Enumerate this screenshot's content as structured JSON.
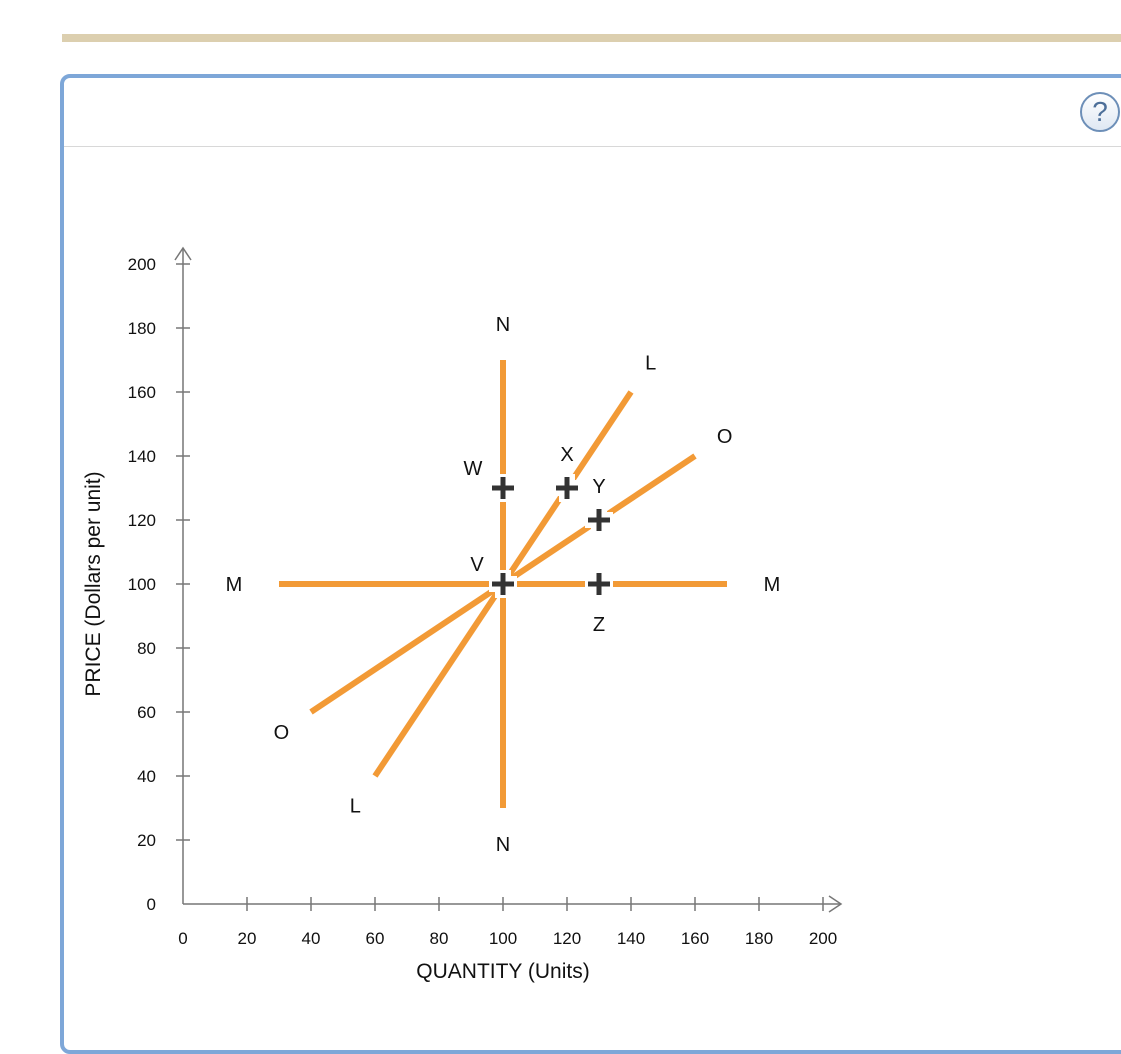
{
  "help": {
    "label": "?"
  },
  "chart_data": {
    "type": "line",
    "xlabel": "QUANTITY (Units)",
    "ylabel": "PRICE (Dollars per unit)",
    "xlim": [
      0,
      200
    ],
    "ylim": [
      0,
      200
    ],
    "xticks": [
      0,
      20,
      40,
      60,
      80,
      100,
      120,
      140,
      160,
      180,
      200
    ],
    "yticks": [
      0,
      20,
      40,
      60,
      80,
      100,
      120,
      140,
      160,
      180,
      200
    ],
    "grid": false,
    "series": [
      {
        "name": "M",
        "points": [
          [
            30,
            100
          ],
          [
            170,
            100
          ]
        ]
      },
      {
        "name": "N",
        "points": [
          [
            100,
            30
          ],
          [
            100,
            170
          ]
        ]
      },
      {
        "name": "L",
        "points": [
          [
            60,
            40
          ],
          [
            140,
            160
          ]
        ]
      },
      {
        "name": "O",
        "points": [
          [
            40,
            60
          ],
          [
            160,
            140
          ]
        ]
      }
    ],
    "points": [
      {
        "label": "V",
        "x": 100,
        "y": 100
      },
      {
        "label": "W",
        "x": 100,
        "y": 130
      },
      {
        "label": "X",
        "x": 120,
        "y": 130
      },
      {
        "label": "Y",
        "x": 130,
        "y": 120
      },
      {
        "label": "Z",
        "x": 130,
        "y": 100
      }
    ],
    "colors": {
      "curve": "#f29a36",
      "marker": "#333333",
      "axis": "#777777"
    }
  }
}
